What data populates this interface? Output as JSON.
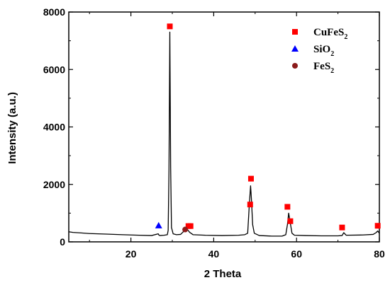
{
  "chart_data": {
    "type": "line",
    "xlabel": "2 Theta",
    "ylabel": "Intensity (a.u.)",
    "xlim": [
      5,
      80
    ],
    "ylim": [
      0,
      8000
    ],
    "x_ticks": [
      "20",
      "40",
      "60",
      "80"
    ],
    "y_ticks": [
      "0",
      "2000",
      "4000",
      "6000",
      "8000"
    ],
    "grid": false,
    "legend_position": "top-right",
    "series": [
      {
        "type": "line",
        "color": "#000000",
        "x": [
          5,
          6,
          8,
          10,
          14,
          18,
          22,
          25,
          26.6,
          26.8,
          27,
          28,
          28.8,
          29.0,
          29.2,
          29.4,
          29.6,
          29.8,
          30.2,
          31,
          32,
          33,
          33.4,
          33.8,
          34.2,
          35,
          38,
          42,
          46,
          47.5,
          48.2,
          48.6,
          48.9,
          49.1,
          49.4,
          49.8,
          51,
          54,
          56.5,
          57.4,
          57.8,
          58.1,
          58.5,
          58.9,
          59.5,
          62,
          66,
          70,
          71,
          71.4,
          72,
          76,
          78.5,
          79.2,
          79.6,
          80
        ],
        "y": [
          350,
          330,
          310,
          290,
          270,
          250,
          230,
          220,
          280,
          230,
          220,
          230,
          250,
          400,
          2500,
          7300,
          2600,
          500,
          280,
          250,
          260,
          400,
          480,
          400,
          330,
          250,
          230,
          220,
          230,
          250,
          300,
          1300,
          1950,
          1500,
          600,
          300,
          220,
          200,
          200,
          250,
          600,
          1000,
          650,
          300,
          230,
          220,
          210,
          210,
          220,
          320,
          230,
          240,
          260,
          320,
          380,
          300
        ]
      }
    ],
    "markers": [
      {
        "name": "CuFeS2",
        "label_main": "CuFeS",
        "label_sub": "2",
        "shape": "square",
        "color": "#ff0000",
        "points": [
          [
            29.4,
            7500
          ],
          [
            33.9,
            550
          ],
          [
            34.4,
            550
          ],
          [
            48.8,
            1300
          ],
          [
            49.0,
            2200
          ],
          [
            57.8,
            1220
          ],
          [
            58.5,
            720
          ],
          [
            71.0,
            500
          ],
          [
            79.6,
            560
          ]
        ]
      },
      {
        "name": "SiO2",
        "label_main": "SiO",
        "label_sub": "2",
        "shape": "triangle",
        "color": "#0000ff",
        "points": [
          [
            26.7,
            570
          ]
        ]
      },
      {
        "name": "FeS2",
        "label_main": "FeS",
        "label_sub": "2",
        "shape": "circle",
        "color": "#8b1a1a",
        "points": [
          [
            33.1,
            430
          ]
        ]
      }
    ]
  }
}
